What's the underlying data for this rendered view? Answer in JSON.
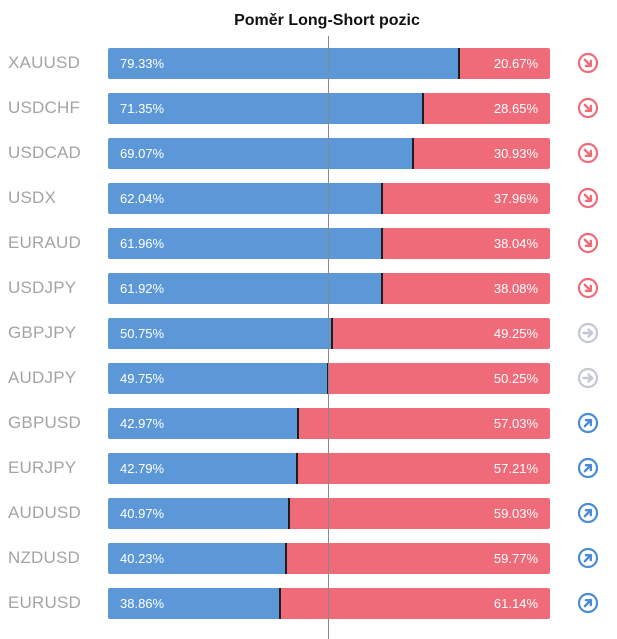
{
  "chart_data": {
    "type": "bar",
    "title": "Poměr Long-Short pozic",
    "categories": [
      "XAUUSD",
      "USDCHF",
      "USDCAD",
      "USDX",
      "EURAUD",
      "USDJPY",
      "GBPJPY",
      "AUDJPY",
      "GBPUSD",
      "EURJPY",
      "AUDUSD",
      "NZDUSD",
      "EURUSD"
    ],
    "series": [
      {
        "color": "#5c98d8",
        "values": [
          79.33,
          71.35,
          69.07,
          62.04,
          61.96,
          61.92,
          50.75,
          49.75,
          42.97,
          42.79,
          40.97,
          40.23,
          38.86
        ],
        "labels": [
          "79.33%",
          "71.35%",
          "69.07%",
          "62.04%",
          "61.96%",
          "61.92%",
          "50.75%",
          "49.75%",
          "42.97%",
          "42.79%",
          "40.97%",
          "40.23%",
          "38.86%"
        ]
      },
      {
        "color": "#f06b7a",
        "values": [
          20.67,
          28.65,
          30.93,
          37.96,
          38.04,
          38.08,
          49.25,
          50.25,
          57.03,
          57.21,
          59.03,
          59.77,
          61.14
        ],
        "labels": [
          "20.67%",
          "28.65%",
          "30.93%",
          "37.96%",
          "38.04%",
          "38.08%",
          "49.25%",
          "50.25%",
          "57.03%",
          "57.21%",
          "59.03%",
          "59.77%",
          "61.14%"
        ]
      }
    ],
    "signals": [
      "down-right-arrow-icon",
      "down-right-arrow-icon",
      "down-right-arrow-icon",
      "down-right-arrow-icon",
      "down-right-arrow-icon",
      "down-right-arrow-icon",
      "right-arrow-icon",
      "right-arrow-icon",
      "up-right-arrow-icon",
      "up-right-arrow-icon",
      "up-right-arrow-icon",
      "up-right-arrow-icon",
      "up-right-arrow-icon"
    ],
    "signal_colors": {
      "down-right-arrow-icon": "#f06b7a",
      "right-arrow-icon": "#c3c8d4",
      "up-right-arrow-icon": "#4b8ad6"
    },
    "xlim": [
      0,
      100
    ],
    "reference_line": 50,
    "stacked": true,
    "orientation": "horizontal"
  }
}
